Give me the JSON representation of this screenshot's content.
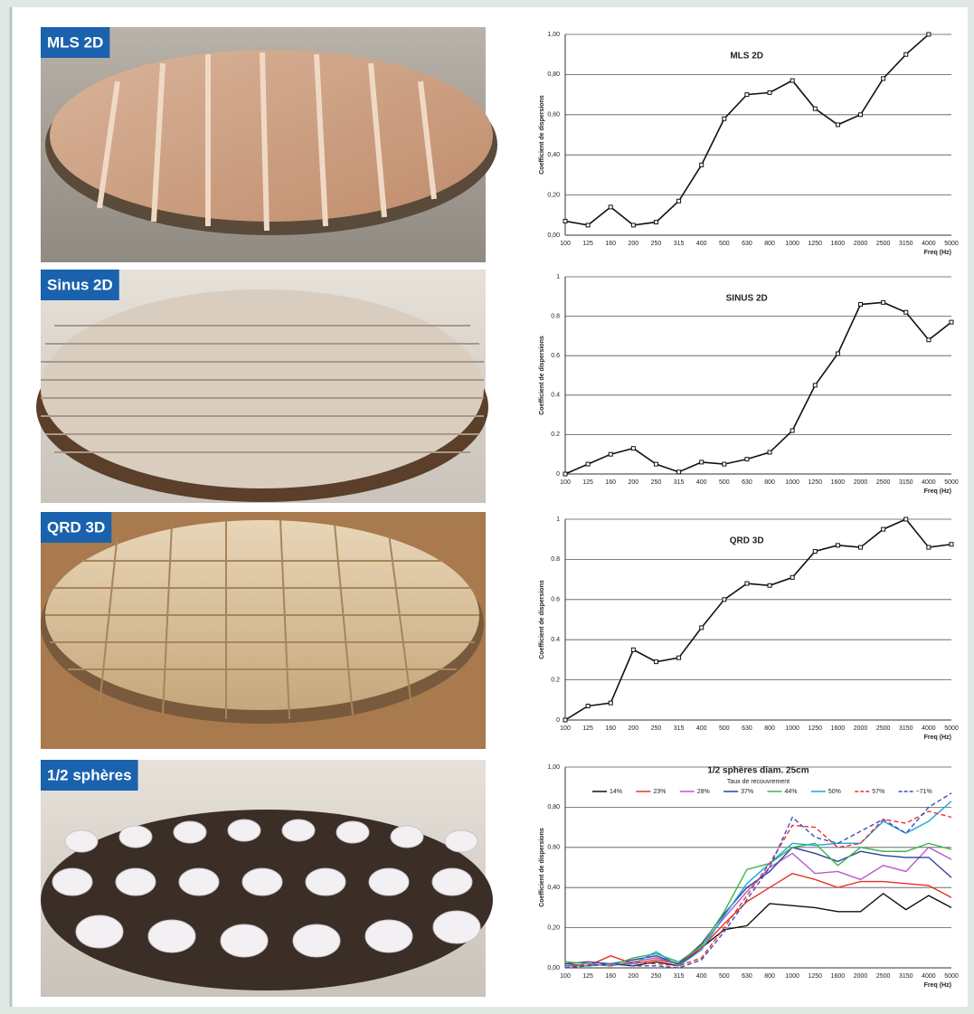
{
  "panels": [
    {
      "label": "MLS 2D"
    },
    {
      "label": "Sinus 2D"
    },
    {
      "label": "QRD 3D"
    },
    {
      "label": "1/2 sphères"
    }
  ],
  "chart_data": [
    {
      "type": "line",
      "title": "MLS 2D",
      "y_label": "Coefficient de dispersions",
      "x_label": "Freq (Hz)",
      "categories": [
        "100",
        "125",
        "160",
        "200",
        "250",
        "315",
        "400",
        "500",
        "630",
        "800",
        "1000",
        "1250",
        "1600",
        "2000",
        "2500",
        "3150",
        "4000",
        "5000"
      ],
      "series": [
        {
          "name": "MLS 2D",
          "color": "#111111",
          "values": [
            0.07,
            0.05,
            0.14,
            0.05,
            0.065,
            0.17,
            0.35,
            0.58,
            0.7,
            0.71,
            0.77,
            0.63,
            0.55,
            0.6,
            0.78,
            0.9,
            1.0,
            null
          ]
        }
      ],
      "ylim": [
        0,
        1
      ],
      "yticks": [
        {
          "value": 0,
          "label": "0,00"
        },
        {
          "value": 0.2,
          "label": "0,20"
        },
        {
          "value": 0.4,
          "label": "0,40"
        },
        {
          "value": 0.6,
          "label": "0,60"
        },
        {
          "value": 0.8,
          "label": "0,80"
        },
        {
          "value": 1,
          "label": "1,00"
        }
      ],
      "grid": true
    },
    {
      "type": "line",
      "title": "SINUS 2D",
      "y_label": "Coefficient de dispersions",
      "x_label": "Freq (Hz)",
      "categories": [
        "100",
        "125",
        "160",
        "200",
        "250",
        "315",
        "400",
        "500",
        "630",
        "800",
        "1000",
        "1250",
        "1600",
        "2000",
        "2500",
        "3150",
        "4000",
        "5000"
      ],
      "series": [
        {
          "name": "SINUS 2D",
          "color": "#111111",
          "values": [
            0.0,
            0.05,
            0.1,
            0.13,
            0.05,
            0.01,
            0.06,
            0.05,
            0.075,
            0.11,
            0.22,
            0.45,
            0.61,
            0.86,
            0.87,
            0.82,
            0.68,
            0.77
          ]
        }
      ],
      "ylim": [
        0,
        1
      ],
      "yticks": [
        0,
        0.2,
        0.4,
        0.6,
        0.8,
        1
      ],
      "grid": true
    },
    {
      "type": "line",
      "title": "QRD 3D",
      "y_label": "Coefficient de dispersions",
      "x_label": "Freq (Hz)",
      "categories": [
        "100",
        "125",
        "160",
        "200",
        "250",
        "315",
        "400",
        "500",
        "630",
        "800",
        "1000",
        "1250",
        "1600",
        "2000",
        "2500",
        "3150",
        "4000",
        "5000"
      ],
      "series": [
        {
          "name": "QRD 3D",
          "color": "#111111",
          "values": [
            0.0,
            0.07,
            0.085,
            0.35,
            0.29,
            0.31,
            0.46,
            0.6,
            0.68,
            0.67,
            0.71,
            0.84,
            0.87,
            0.86,
            0.95,
            1.0,
            0.86,
            0.875
          ]
        }
      ],
      "ylim": [
        0,
        1
      ],
      "yticks": [
        0,
        0.2,
        0.4,
        0.6,
        0.8,
        1
      ],
      "grid": true
    },
    {
      "type": "line",
      "title": "1/2 sphères diam. 25cm",
      "subtitle": "Taux de recouvrement",
      "y_label": "Coefficient de dispersions",
      "x_label": "Freq (Hz)",
      "categories": [
        "100",
        "125",
        "160",
        "200",
        "250",
        "315",
        "400",
        "500",
        "630",
        "800",
        "1000",
        "1250",
        "1600",
        "2000",
        "2500",
        "3150",
        "4000",
        "5000"
      ],
      "legend": "top",
      "series": [
        {
          "name": "14%",
          "color": "#111111",
          "dashed": false,
          "values": [
            0.01,
            0.01,
            0.02,
            0.01,
            0.03,
            0.01,
            0.1,
            0.19,
            0.21,
            0.32,
            0.31,
            0.3,
            0.28,
            0.28,
            0.37,
            0.29,
            0.36,
            0.3
          ]
        },
        {
          "name": "23%",
          "color": "#e8322a",
          "dashed": false,
          "values": [
            0.02,
            0.01,
            0.06,
            0.02,
            0.04,
            0.02,
            0.1,
            0.22,
            0.33,
            0.4,
            0.47,
            0.44,
            0.4,
            0.43,
            0.43,
            0.42,
            0.41,
            0.35
          ]
        },
        {
          "name": "28%",
          "color": "#b45cc8",
          "dashed": false,
          "values": [
            0.03,
            0.02,
            0.01,
            0.03,
            0.05,
            0.02,
            0.11,
            0.25,
            0.38,
            0.5,
            0.57,
            0.47,
            0.48,
            0.44,
            0.51,
            0.48,
            0.6,
            0.54
          ]
        },
        {
          "name": "37%",
          "color": "#2f3fa0",
          "dashed": false,
          "values": [
            0.02,
            0.03,
            0.02,
            0.04,
            0.06,
            0.02,
            0.12,
            0.27,
            0.4,
            0.48,
            0.6,
            0.57,
            0.53,
            0.58,
            0.56,
            0.55,
            0.55,
            0.45
          ]
        },
        {
          "name": "44%",
          "color": "#3cb54a",
          "dashed": false,
          "values": [
            0.03,
            0.02,
            0.01,
            0.05,
            0.07,
            0.03,
            0.11,
            0.28,
            0.49,
            0.52,
            0.6,
            0.62,
            0.51,
            0.6,
            0.58,
            0.58,
            0.62,
            0.59
          ]
        },
        {
          "name": "50%",
          "color": "#1fa3d8",
          "dashed": false,
          "values": [
            0.01,
            0.01,
            0.02,
            0.02,
            0.08,
            0.01,
            0.09,
            0.26,
            0.42,
            0.52,
            0.62,
            0.61,
            0.62,
            0.62,
            0.73,
            0.67,
            0.73,
            0.83
          ]
        },
        {
          "name": "57%",
          "color": "#e8322a",
          "dashed": true,
          "values": [
            0.0,
            0.02,
            0.01,
            0.03,
            0.02,
            0.01,
            0.05,
            0.2,
            0.36,
            0.52,
            0.71,
            0.7,
            0.6,
            0.62,
            0.74,
            0.72,
            0.78,
            0.75
          ]
        },
        {
          "name": "~71%",
          "color": "#3a4fc0",
          "dashed": true,
          "values": [
            0.0,
            0.01,
            0.02,
            0.01,
            0.01,
            0.0,
            0.04,
            0.18,
            0.34,
            0.5,
            0.75,
            0.65,
            0.62,
            0.68,
            0.74,
            0.67,
            0.8,
            0.87
          ]
        }
      ],
      "ylim": [
        0,
        1
      ],
      "yticks": [
        {
          "value": 0,
          "label": "0,00"
        },
        {
          "value": 0.2,
          "label": "0,20"
        },
        {
          "value": 0.4,
          "label": "0,40"
        },
        {
          "value": 0.6,
          "label": "0,60"
        },
        {
          "value": 0.8,
          "label": "0,80"
        },
        {
          "value": 1,
          "label": "1,00"
        }
      ],
      "grid": true
    }
  ]
}
